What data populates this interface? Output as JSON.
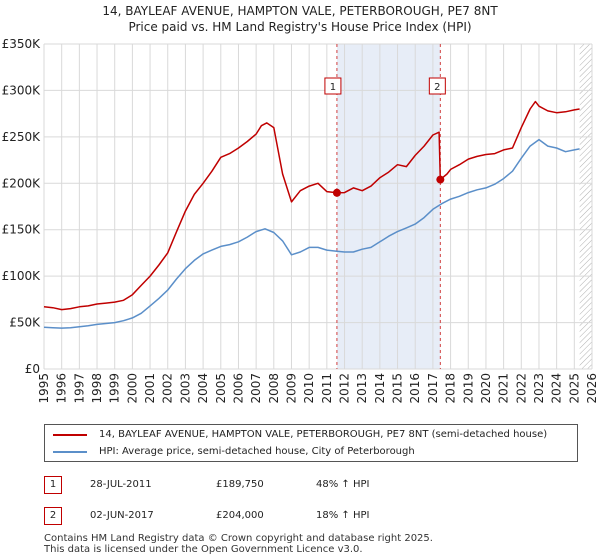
{
  "title_line1": "14, BAYLEAF AVENUE, HAMPTON VALE, PETERBOROUGH, PE7 8NT",
  "title_line2": "Price paid vs. HM Land Registry's House Price Index (HPI)",
  "colors": {
    "property": "#c00000",
    "hpi": "#5b8fc9",
    "marker": "#c00000"
  },
  "legend": {
    "property": "14, BAYLEAF AVENUE, HAMPTON VALE, PETERBOROUGH, PE7 8NT (semi-detached house)",
    "hpi": "HPI: Average price, semi-detached house, City of Peterborough"
  },
  "sales": [
    {
      "num": "1",
      "date": "28-JUL-2011",
      "price": "£189,750",
      "hpi": "48% ↑ HPI"
    },
    {
      "num": "2",
      "date": "02-JUN-2017",
      "price": "£204,000",
      "hpi": "18% ↑ HPI"
    }
  ],
  "footer": {
    "line1": "Contains HM Land Registry data © Crown copyright and database right 2025.",
    "line2": "This data is licensed under the Open Government Licence v3.0."
  },
  "chart_data": {
    "type": "line",
    "xlim": [
      1995,
      2026
    ],
    "ylim": [
      0,
      350000
    ],
    "yticks": [
      {
        "value": 0,
        "label": "£0"
      },
      {
        "value": 50000,
        "label": "£50K"
      },
      {
        "value": 100000,
        "label": "£100K"
      },
      {
        "value": 150000,
        "label": "£150K"
      },
      {
        "value": 200000,
        "label": "£200K"
      },
      {
        "value": 250000,
        "label": "£250K"
      },
      {
        "value": 300000,
        "label": "£300K"
      },
      {
        "value": 350000,
        "label": "£350K"
      }
    ],
    "xticks": [
      "1995",
      "1996",
      "1997",
      "1998",
      "1999",
      "2000",
      "2001",
      "2002",
      "2003",
      "2004",
      "2005",
      "2006",
      "2007",
      "2008",
      "2009",
      "2010",
      "2011",
      "2012",
      "2013",
      "2014",
      "2015",
      "2016",
      "2017",
      "2018",
      "2019",
      "2020",
      "2021",
      "2022",
      "2023",
      "2024",
      "2025",
      "2026"
    ],
    "grid": true,
    "shaded_region": [
      2011.57,
      2017.42
    ],
    "hatched_after": 2025.3,
    "series": [
      {
        "name": "14, BAYLEAF AVENUE, HAMPTON VALE, PETERBOROUGH, PE7 8NT (semi-detached house)",
        "color": "#c00000",
        "x": [
          1995,
          1995.5,
          1996,
          1996.5,
          1997,
          1997.5,
          1998,
          1998.5,
          1999,
          1999.5,
          2000,
          2000.5,
          2001,
          2001.5,
          2002,
          2002.5,
          2003,
          2003.5,
          2004,
          2004.5,
          2005,
          2005.5,
          2006,
          2006.5,
          2007,
          2007.3,
          2007.6,
          2008,
          2008.5,
          2009,
          2009.5,
          2010,
          2010.5,
          2011,
          2011.57,
          2012,
          2012.5,
          2013,
          2013.5,
          2014,
          2014.5,
          2015,
          2015.5,
          2016,
          2016.5,
          2017,
          2017.35,
          2017.42,
          2017.8,
          2018,
          2018.5,
          2019,
          2019.5,
          2020,
          2020.5,
          2021,
          2021.5,
          2022,
          2022.5,
          2022.8,
          2023,
          2023.5,
          2024,
          2024.5,
          2025,
          2025.3
        ],
        "values": [
          67000,
          66000,
          64000,
          65000,
          67000,
          68000,
          70000,
          71000,
          72000,
          74000,
          80000,
          90000,
          100000,
          112000,
          125000,
          148000,
          170000,
          188000,
          200000,
          213000,
          228000,
          232000,
          238000,
          245000,
          253000,
          262000,
          265000,
          260000,
          210000,
          180000,
          192000,
          197000,
          200000,
          191000,
          189750,
          190000,
          195000,
          192000,
          197000,
          206000,
          212000,
          220000,
          218000,
          230000,
          240000,
          252000,
          255000,
          204000,
          210000,
          215000,
          220000,
          226000,
          229000,
          231000,
          232000,
          236000,
          238000,
          260000,
          280000,
          288000,
          283000,
          278000,
          276000,
          277000,
          279000,
          280000
        ]
      },
      {
        "name": "HPI: Average price, semi-detached house, City of Peterborough",
        "color": "#5b8fc9",
        "x": [
          1995,
          1995.5,
          1996,
          1996.5,
          1997,
          1997.5,
          1998,
          1998.5,
          1999,
          1999.5,
          2000,
          2000.5,
          2001,
          2001.5,
          2002,
          2002.5,
          2003,
          2003.5,
          2004,
          2004.5,
          2005,
          2005.5,
          2006,
          2006.5,
          2007,
          2007.5,
          2008,
          2008.5,
          2009,
          2009.5,
          2010,
          2010.5,
          2011,
          2011.5,
          2012,
          2012.5,
          2013,
          2013.5,
          2014,
          2014.5,
          2015,
          2015.5,
          2016,
          2016.5,
          2017,
          2017.5,
          2018,
          2018.5,
          2019,
          2019.5,
          2020,
          2020.5,
          2021,
          2021.5,
          2022,
          2022.5,
          2023,
          2023.5,
          2024,
          2024.5,
          2025,
          2025.3
        ],
        "values": [
          45000,
          44500,
          44000,
          44500,
          45500,
          46500,
          48000,
          49000,
          50000,
          52000,
          55000,
          60000,
          68000,
          76000,
          85000,
          97000,
          108000,
          117000,
          124000,
          128000,
          132000,
          134000,
          137000,
          142000,
          148000,
          151000,
          147000,
          138000,
          123000,
          126000,
          131000,
          131000,
          128000,
          127000,
          126000,
          126000,
          129000,
          131000,
          137000,
          143000,
          148000,
          152000,
          156000,
          163000,
          172000,
          178000,
          183000,
          186000,
          190000,
          193000,
          195000,
          199000,
          205000,
          213000,
          227000,
          240000,
          247000,
          240000,
          238000,
          234000,
          236000,
          237000
        ]
      }
    ],
    "markers": [
      {
        "label": "1",
        "x": 2011.57,
        "value": 189750
      },
      {
        "label": "2",
        "x": 2017.42,
        "value": 204000
      }
    ]
  }
}
